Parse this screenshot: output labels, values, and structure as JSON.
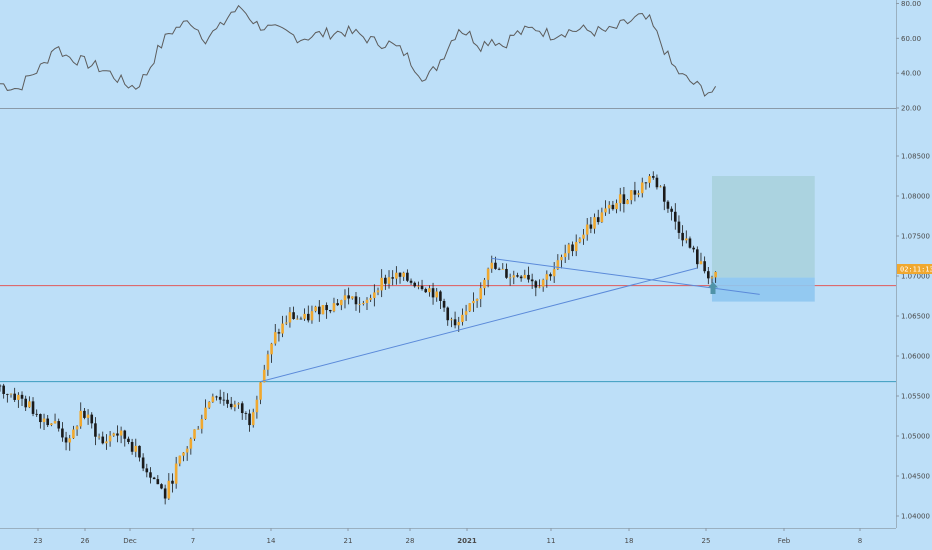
{
  "chart_data": {
    "type": "candlestick",
    "title": "",
    "x_ticks": [
      "23",
      "26",
      "Dec",
      "7",
      "14",
      "21",
      "28",
      "2021",
      "11",
      "18",
      "25",
      "Feb",
      "8"
    ],
    "price_axis": {
      "ticks": [
        "1.08500",
        "1.08000",
        "1.07500",
        "1.07000",
        "1.06500",
        "1.06000",
        "1.05500",
        "1.05000",
        "1.04500",
        "1.04000"
      ],
      "range": [
        1.0385,
        1.0895
      ],
      "current_label": "02:11:13"
    },
    "oscillator": {
      "ticks": [
        "80.00",
        "60.00",
        "40.00",
        "20.00"
      ],
      "range": [
        20,
        82
      ],
      "color": "#5c5c5c"
    },
    "price_path": [
      [
        0,
        1.0563
      ],
      [
        7,
        1.0545
      ],
      [
        12,
        1.0525
      ],
      [
        16,
        1.0515
      ],
      [
        20,
        1.049
      ],
      [
        23,
        1.053
      ],
      [
        25,
        1.052
      ],
      [
        29,
        1.049
      ],
      [
        32,
        1.0505
      ],
      [
        36,
        1.0495
      ],
      [
        40,
        1.0465
      ],
      [
        44,
        1.044
      ],
      [
        46,
        1.0425
      ],
      [
        49,
        1.046
      ],
      [
        53,
        1.0495
      ],
      [
        56,
        1.0525
      ],
      [
        59,
        1.0555
      ],
      [
        62,
        1.0545
      ],
      [
        66,
        1.0535
      ],
      [
        69,
        1.052
      ],
      [
        72,
        1.057
      ],
      [
        76,
        1.0625
      ],
      [
        80,
        1.065
      ],
      [
        84,
        1.0645
      ],
      [
        88,
        1.066
      ],
      [
        92,
        1.0665
      ],
      [
        96,
        1.0675
      ],
      [
        100,
        1.066
      ],
      [
        104,
        1.069
      ],
      [
        108,
        1.07
      ],
      [
        112,
        1.0695
      ],
      [
        116,
        1.069
      ],
      [
        119,
        1.068
      ],
      [
        122,
        1.066
      ],
      [
        125,
        1.0635
      ],
      [
        128,
        1.065
      ],
      [
        131,
        1.0675
      ],
      [
        134,
        1.0715
      ],
      [
        137,
        1.0705
      ],
      [
        141,
        1.07
      ],
      [
        144,
        1.0705
      ],
      [
        147,
        1.069
      ],
      [
        150,
        1.07
      ],
      [
        154,
        1.072
      ],
      [
        158,
        1.0745
      ],
      [
        162,
        1.0765
      ],
      [
        166,
        1.078
      ],
      [
        170,
        1.0795
      ],
      [
        174,
        1.0805
      ],
      [
        178,
        1.0825
      ],
      [
        181,
        1.081
      ],
      [
        183,
        1.0785
      ],
      [
        186,
        1.076
      ],
      [
        189,
        1.0735
      ],
      [
        192,
        1.0712
      ],
      [
        195,
        1.0698
      ]
    ],
    "oscillator_path": [
      [
        0,
        34
      ],
      [
        5,
        31
      ],
      [
        8,
        38
      ],
      [
        12,
        45
      ],
      [
        15,
        56
      ],
      [
        18,
        50
      ],
      [
        22,
        47
      ],
      [
        26,
        44
      ],
      [
        30,
        40
      ],
      [
        34,
        34
      ],
      [
        37,
        32
      ],
      [
        40,
        40
      ],
      [
        43,
        53
      ],
      [
        46,
        63
      ],
      [
        49,
        67
      ],
      [
        52,
        70
      ],
      [
        56,
        60
      ],
      [
        60,
        66
      ],
      [
        63,
        75
      ],
      [
        66,
        77
      ],
      [
        70,
        68
      ],
      [
        74,
        65
      ],
      [
        78,
        63
      ],
      [
        82,
        60
      ],
      [
        86,
        62
      ],
      [
        90,
        63
      ],
      [
        94,
        64
      ],
      [
        98,
        62
      ],
      [
        102,
        58
      ],
      [
        106,
        57
      ],
      [
        110,
        52
      ],
      [
        113,
        44
      ],
      [
        116,
        36
      ],
      [
        119,
        44
      ],
      [
        122,
        55
      ],
      [
        125,
        66
      ],
      [
        128,
        62
      ],
      [
        131,
        56
      ],
      [
        134,
        60
      ],
      [
        137,
        56
      ],
      [
        140,
        62
      ],
      [
        143,
        64
      ],
      [
        146,
        66
      ],
      [
        150,
        62
      ],
      [
        154,
        64
      ],
      [
        158,
        65
      ],
      [
        162,
        64
      ],
      [
        166,
        64
      ],
      [
        170,
        68
      ],
      [
        174,
        72
      ],
      [
        177,
        70
      ],
      [
        180,
        58
      ],
      [
        183,
        45
      ],
      [
        186,
        38
      ],
      [
        189,
        34
      ],
      [
        192,
        30
      ],
      [
        195,
        29
      ]
    ],
    "horizontal_lines": [
      {
        "price": 1.0568,
        "color": "#3c9dbf"
      },
      {
        "price": 1.0688,
        "color": "#e05a5a"
      }
    ],
    "trend_lines": [
      {
        "from": [
          71,
          1.0568
        ],
        "to": [
          190,
          1.071
        ],
        "color": "#5b8ad9"
      },
      {
        "from": [
          134,
          1.0722
        ],
        "to": [
          207,
          1.0677
        ],
        "color": "#5b8ad9"
      }
    ],
    "position_box": {
      "x_range": [
        194,
        222
      ],
      "entry": 1.0698,
      "target": 1.0825,
      "stop": 1.0668,
      "profit_color": "#a8d2dd",
      "loss_color": "#8ec7f0"
    },
    "up_color": "#f0a82f",
    "down_color": "#1a1a1a"
  }
}
